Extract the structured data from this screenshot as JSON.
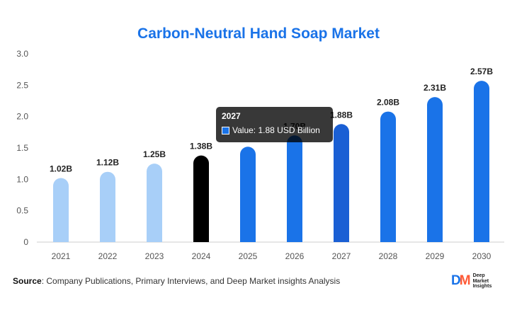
{
  "chart_data": {
    "type": "bar",
    "title": "Carbon-Neutral Hand Soap Market",
    "categories": [
      "2021",
      "2022",
      "2023",
      "2024",
      "2025",
      "2026",
      "2027",
      "2028",
      "2029",
      "2030"
    ],
    "values": [
      1.02,
      1.12,
      1.25,
      1.38,
      1.52,
      1.7,
      1.88,
      2.08,
      2.31,
      2.57
    ],
    "data_labels": [
      "1.02B",
      "1.12B",
      "1.25B",
      "1.38B",
      "",
      "1.70B",
      "1.88B",
      "2.08B",
      "2.31B",
      "2.57B"
    ],
    "y_ticks": [
      "0",
      "0.5",
      "1.0",
      "1.5",
      "2.0",
      "2.5",
      "3.0"
    ],
    "ylim": [
      0,
      3.0
    ],
    "grid": false,
    "bar_colors": [
      "#a8cff8",
      "#a8cff8",
      "#a8cff8",
      "#000000",
      "#1a73e8",
      "#1a73e8",
      "#1a5fd4",
      "#1a73e8",
      "#1a73e8",
      "#1a73e8"
    ],
    "highlight_index": 6
  },
  "tooltip": {
    "title": "2027",
    "value_text": "Value: 1.88 USD Billion",
    "swatch_color": "#1a73e8"
  },
  "source": {
    "label": "Source",
    "text": ": Company Publications, Primary Interviews, and Deep Market insights Analysis"
  },
  "logo": {
    "mark_d": "D",
    "mark_m": "M",
    "line1": "Deep",
    "line2": "Market",
    "line3": "Insights"
  }
}
